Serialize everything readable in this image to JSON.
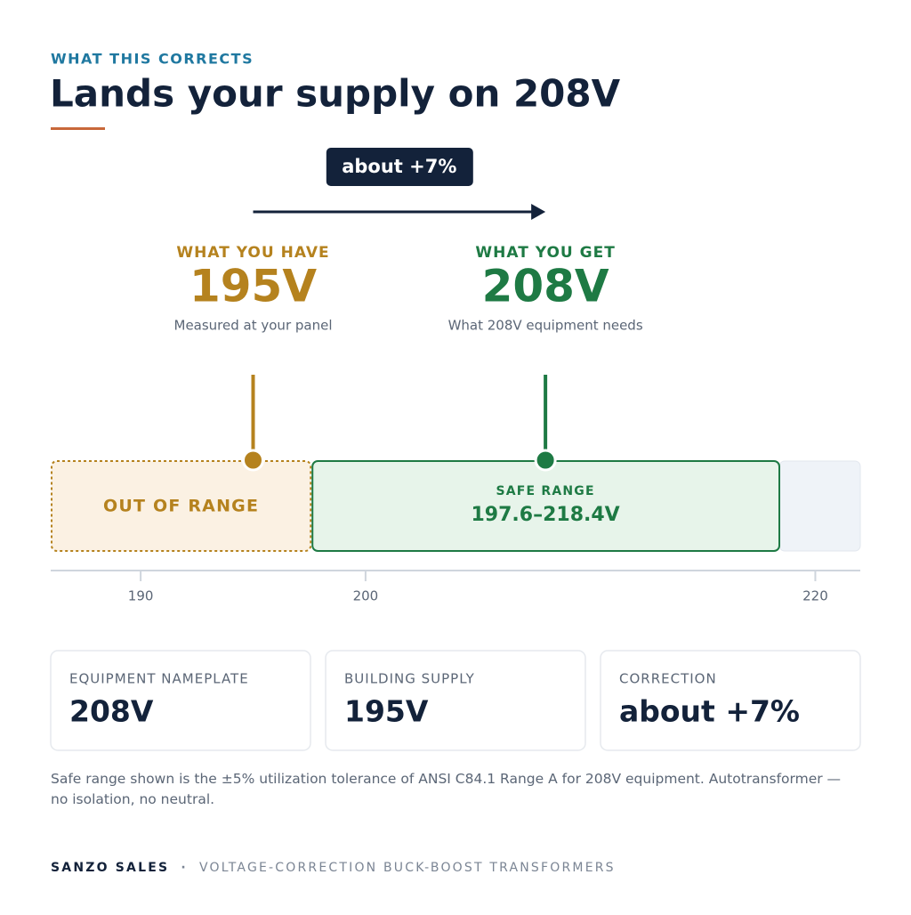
{
  "eyebrow": "WHAT THIS CORRECTS",
  "title": "Lands your supply on 208V",
  "badge": "about +7%",
  "have": {
    "label": "WHAT YOU HAVE",
    "value": "195V",
    "note": "Measured at your panel"
  },
  "get": {
    "label": "WHAT YOU GET",
    "value": "208V",
    "note": "What 208V equipment needs"
  },
  "scale": {
    "xlim": [
      186,
      222
    ],
    "xticks": [
      190,
      200,
      220
    ],
    "out_label": "OUT OF RANGE",
    "safe_label": "SAFE RANGE",
    "safe_range_label": "197.6–218.4V",
    "safe_range": [
      197.6,
      218.4
    ],
    "have_value": 195,
    "get_value": 208
  },
  "cards": [
    {
      "label": "EQUIPMENT NAMEPLATE",
      "value": "208V"
    },
    {
      "label": "BUILDING SUPPLY",
      "value": "195V"
    },
    {
      "label": "CORRECTION",
      "value": "about +7%"
    }
  ],
  "footnote": "Safe range shown is the ±5% utilization tolerance of ANSI C84.1 Range A for 208V equipment. Autotransformer — no isolation, no neutral.",
  "footer": {
    "brand": "SANZO SALES",
    "separator": "·",
    "tagline": "VOLTAGE-CORRECTION BUCK-BOOST TRANSFORMERS"
  }
}
